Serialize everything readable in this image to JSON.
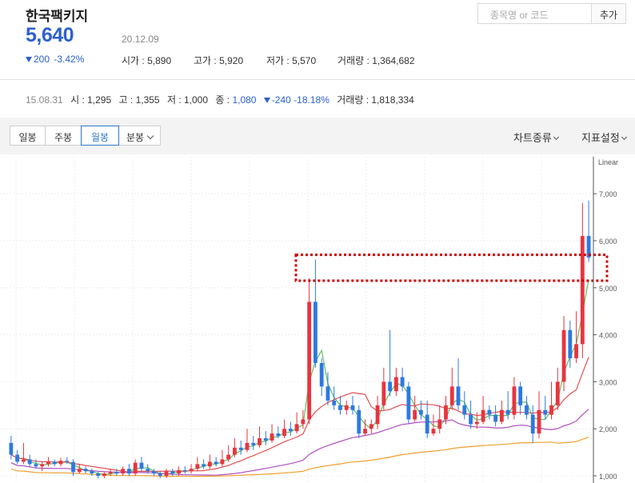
{
  "stock": {
    "name": "한국팩키지",
    "price": "5,640",
    "date": "20.12.09",
    "change": "200",
    "change_pct": "-3.42%",
    "open_label": "시가",
    "open": "5,890",
    "high_label": "고가",
    "high": "5,920",
    "low_label": "저가",
    "low": "5,570",
    "volume_label": "거래량",
    "volume": "1,364,682"
  },
  "search": {
    "placeholder": "종목명 or 코드",
    "add_label": "추가"
  },
  "history": {
    "date": "15.08.31",
    "open_label": "시",
    "open": "1,295",
    "high_label": "고",
    "high": "1,355",
    "low_label": "저",
    "low": "1,000",
    "close_label": "종",
    "close": "1,080",
    "change": "-240",
    "change_pct": "-18.18%",
    "volume_label": "거래량",
    "volume": "1,818,334"
  },
  "tabs": [
    "일봉",
    "주봉",
    "월봉",
    "분봉"
  ],
  "active_tab": "월봉",
  "toolbar": {
    "chart_type": "차트종류",
    "indicator": "지표설정"
  },
  "colors": {
    "up": "#e8343f",
    "down": "#2d79e0",
    "price_blue": "#2d5fce",
    "highlight": "#cc0000"
  },
  "chart_data": {
    "type": "candlestick",
    "scale_label": "Linear",
    "y_ticks": [
      "7,000",
      "6,000",
      "5,000",
      "4,000",
      "3,000",
      "2,000",
      "1,000"
    ],
    "y_tick_values": [
      7000,
      6000,
      5000,
      4000,
      3000,
      2000,
      1000
    ],
    "ylim": [
      950,
      7700
    ],
    "candles": [
      [
        1700,
        1450,
        1850,
        1350
      ],
      [
        1450,
        1300,
        1550,
        1250
      ],
      [
        1300,
        1350,
        1700,
        1250
      ],
      [
        1350,
        1250,
        1450,
        1200
      ],
      [
        1250,
        1200,
        1350,
        1150
      ],
      [
        1200,
        1250,
        1300,
        1100
      ],
      [
        1250,
        1300,
        1400,
        1200
      ],
      [
        1300,
        1250,
        1350,
        1200
      ],
      [
        1250,
        1320,
        1380,
        1200
      ],
      [
        1320,
        1300,
        1400,
        1250
      ],
      [
        1295,
        1080,
        1355,
        1000
      ],
      [
        1080,
        1150,
        1250,
        1050
      ],
      [
        1150,
        1100,
        1200,
        1050
      ],
      [
        1100,
        1050,
        1150,
        1000
      ],
      [
        1050,
        1000,
        1100,
        950
      ],
      [
        1000,
        1050,
        1100,
        950
      ],
      [
        1050,
        1080,
        1150,
        1000
      ],
      [
        1080,
        1050,
        1150,
        1000
      ],
      [
        1050,
        1150,
        1200,
        1000
      ],
      [
        1150,
        1050,
        1250,
        1000
      ],
      [
        1050,
        1280,
        1350,
        1000
      ],
      [
        1280,
        1150,
        1400,
        1100
      ],
      [
        1150,
        1100,
        1250,
        1050
      ],
      [
        1100,
        1050,
        1150,
        1000
      ],
      [
        1050,
        1000,
        1100,
        950
      ],
      [
        1000,
        1100,
        1150,
        950
      ],
      [
        1100,
        1050,
        1150,
        1000
      ],
      [
        1050,
        1120,
        1200,
        1000
      ],
      [
        1120,
        1100,
        1200,
        1050
      ],
      [
        1100,
        1150,
        1250,
        1050
      ],
      [
        1150,
        1250,
        1400,
        1100
      ],
      [
        1250,
        1200,
        1350,
        1150
      ],
      [
        1200,
        1300,
        1450,
        1150
      ],
      [
        1300,
        1250,
        1400,
        1200
      ],
      [
        1250,
        1350,
        1550,
        1200
      ],
      [
        1350,
        1450,
        1650,
        1300
      ],
      [
        1450,
        1600,
        1800,
        1400
      ],
      [
        1600,
        1550,
        1750,
        1450
      ],
      [
        1550,
        1700,
        2000,
        1500
      ],
      [
        1700,
        1650,
        1850,
        1550
      ],
      [
        1650,
        1800,
        2050,
        1600
      ],
      [
        1800,
        1750,
        1950,
        1650
      ],
      [
        1750,
        1900,
        2100,
        1700
      ],
      [
        1900,
        1850,
        2050,
        1800
      ],
      [
        1850,
        2000,
        2200,
        1800
      ],
      [
        2000,
        1950,
        2150,
        1850
      ],
      [
        1950,
        2100,
        2350,
        1900
      ],
      [
        2100,
        2200,
        2400,
        2000
      ],
      [
        2200,
        4700,
        5200,
        2100
      ],
      [
        4700,
        3400,
        5600,
        3300
      ],
      [
        3400,
        2900,
        3500,
        2700
      ],
      [
        2900,
        2600,
        3200,
        2500
      ],
      [
        2600,
        2500,
        2900,
        2400
      ],
      [
        2500,
        2400,
        2700,
        2300
      ],
      [
        2400,
        2500,
        2600,
        2300
      ],
      [
        2500,
        2400,
        2700,
        2300
      ],
      [
        2400,
        1900,
        2500,
        1800
      ],
      [
        1900,
        2000,
        2200,
        1850
      ],
      [
        2000,
        2100,
        2200,
        1900
      ],
      [
        2100,
        2500,
        2700,
        2000
      ],
      [
        2500,
        3000,
        3300,
        2400
      ],
      [
        3000,
        2800,
        4100,
        2700
      ],
      [
        2800,
        3100,
        3300,
        2700
      ],
      [
        3100,
        2900,
        3300,
        2800
      ],
      [
        2900,
        2200,
        3000,
        2100
      ],
      [
        2200,
        2400,
        2700,
        2150
      ],
      [
        2400,
        2300,
        2600,
        2200
      ],
      [
        2300,
        1900,
        2600,
        1800
      ],
      [
        1900,
        2000,
        2300,
        1850
      ],
      [
        2000,
        2200,
        2500,
        1900
      ],
      [
        2200,
        2500,
        2700,
        2100
      ],
      [
        2500,
        2900,
        3300,
        2400
      ],
      [
        2900,
        2500,
        3500,
        2400
      ],
      [
        2500,
        2300,
        2800,
        2200
      ],
      [
        2300,
        2100,
        2600,
        2000
      ],
      [
        2100,
        2150,
        2350,
        2000
      ],
      [
        2150,
        2400,
        2700,
        2100
      ],
      [
        2400,
        2300,
        2500,
        2200
      ],
      [
        2300,
        2150,
        2500,
        2050
      ],
      [
        2150,
        2400,
        2600,
        2100
      ],
      [
        2400,
        2300,
        2800,
        2200
      ],
      [
        2300,
        2900,
        3100,
        2200
      ],
      [
        2900,
        2500,
        3000,
        2300
      ],
      [
        2500,
        2300,
        2700,
        2200
      ],
      [
        2300,
        1900,
        2500,
        1700
      ],
      [
        1900,
        2400,
        2800,
        1800
      ],
      [
        2400,
        2300,
        2700,
        2200
      ],
      [
        2300,
        2500,
        3000,
        2200
      ],
      [
        2500,
        3000,
        3300,
        2400
      ],
      [
        3000,
        4100,
        4400,
        2800
      ],
      [
        4100,
        3500,
        4300,
        3300
      ],
      [
        3500,
        3800,
        4500,
        3400
      ],
      [
        3800,
        6100,
        6800,
        3500
      ],
      [
        6100,
        5640,
        6850,
        5550
      ]
    ],
    "moving_averages": [
      {
        "name": "MA5",
        "color": "#5fbf5f"
      },
      {
        "name": "MA20",
        "color": "#e05050"
      },
      {
        "name": "MA60",
        "color": "#b050c0"
      },
      {
        "name": "MA120",
        "color": "#f0a030"
      }
    ],
    "highlight_box": {
      "y_top": 5700,
      "y_bottom": 5150
    }
  }
}
